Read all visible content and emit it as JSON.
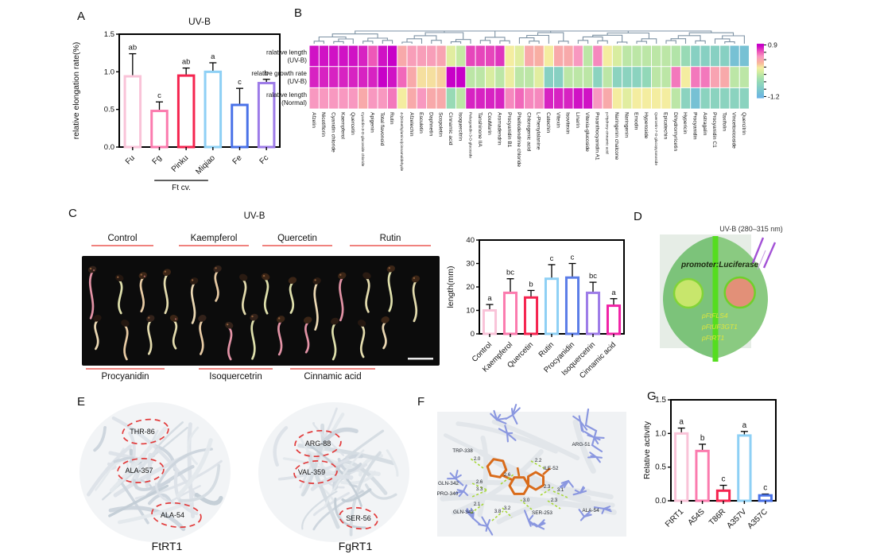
{
  "panels": {
    "a": "A",
    "b": "B",
    "c": "C",
    "d": "D",
    "e": "E",
    "f": "F",
    "g": "G"
  },
  "chart_data": [
    {
      "id": "panel_a",
      "type": "bar",
      "title": "UV-B",
      "ylabel": "relative elongation rate(%)",
      "ylim": [
        0,
        1.5
      ],
      "yticks": [
        "0.0",
        "0.5",
        "1.0",
        "1.5"
      ],
      "categories": [
        "Fu",
        "Fg",
        "Pinku",
        "Miqiao",
        "Fe",
        "Fc"
      ],
      "values": [
        0.94,
        0.48,
        0.95,
        1.0,
        0.56,
        0.85
      ],
      "errors": [
        0.3,
        0.12,
        0.1,
        0.12,
        0.22,
        0.05
      ],
      "letters": [
        "ab",
        "c",
        "ab",
        "a",
        "c",
        "b"
      ],
      "bar_colors": [
        "#f9c3d8",
        "#fb7bae",
        "#f5244f",
        "#8ed0f5",
        "#4a72e8",
        "#9d7be8"
      ],
      "group_label": "Ft cv.",
      "group_indices": [
        2,
        3
      ]
    },
    {
      "id": "panel_b",
      "type": "heatmap",
      "row_labels": [
        [
          "ralative length",
          "(UV-B)"
        ],
        [
          "relative growth rate",
          "(UV-B)"
        ],
        [
          "ralative length",
          "(Normal)"
        ]
      ],
      "columns": [
        "Afzelin",
        "Nicotiflorin",
        "Cyanidin chloride",
        "Kaempferol",
        "Quercetin",
        "Cyanidin-3-O-glucoside chloride",
        "Apigenin",
        "Total flavonoid",
        "Rutin",
        "4-(Dimethylamino)cinnamaldehyde",
        "Afzelechin",
        "Esculetin",
        "Daphnetin",
        "Scopoletin",
        "Cinnamic acid",
        "Isoquercitrin",
        "Pelargonidin 3-O-glucoside",
        "Tanshinone IIA",
        "CouMarin",
        "Aromadendrin",
        "Procyanidin B1",
        "Phellodendrine chloride",
        "Chlorogenic acid",
        "L-Phenylalanine",
        "Catechin",
        "Vitexin",
        "Isovitexin",
        "Linarin",
        "Vitexia-glucoside",
        "Proanthocyanidin A1",
        "p-Hydroxy-cinnamic acid",
        "Naringenin chalcone",
        "Naringenin",
        "Emodin",
        "Hyperoside",
        "Quercetin-7-O-glucopyranoside",
        "Epicatechin",
        "Dihydromyricetin",
        "Hypericin",
        "Procyanidin",
        "Astragalin",
        "Procyanidin C1",
        "Taxifolin",
        "Vincetoxicoside",
        "Quercitrin"
      ],
      "small_label_indices": [
        5,
        9,
        16,
        30,
        35
      ],
      "values": [
        [
          0.85,
          0.85,
          0.85,
          0.85,
          0.85,
          0.8,
          0.65,
          0.85,
          0.9,
          0.3,
          0.4,
          0.4,
          0.4,
          0.35,
          -0.1,
          -0.25,
          0.7,
          0.7,
          0.7,
          0.75,
          0.0,
          -0.1,
          0.3,
          0.25,
          0.0,
          0.3,
          0.3,
          0.45,
          -0.3,
          0.5,
          0.0,
          -0.15,
          -0.3,
          -0.3,
          -0.3,
          -0.3,
          -0.3,
          -0.35,
          -0.55,
          -0.75,
          -0.75,
          -0.75,
          -0.75,
          -1.0,
          -1.0
        ],
        [
          0.8,
          0.8,
          0.8,
          0.8,
          0.8,
          0.8,
          0.8,
          0.9,
          0.85,
          0.6,
          0.3,
          0.05,
          0.05,
          0.1,
          0.9,
          0.9,
          -0.3,
          -0.3,
          -0.15,
          -0.3,
          -0.05,
          -0.3,
          -0.3,
          -0.1,
          -0.75,
          -0.75,
          -0.3,
          -0.3,
          -0.3,
          -0.7,
          -0.3,
          -0.7,
          -0.7,
          -0.7,
          -0.6,
          -0.3,
          -0.3,
          0.55,
          0.0,
          0.55,
          0.55,
          0.35,
          0.3,
          -0.3,
          -0.3
        ],
        [
          0.45,
          0.45,
          0.45,
          0.45,
          0.45,
          0.3,
          0.45,
          0.45,
          0.55,
          0.0,
          0.3,
          0.45,
          0.3,
          0.3,
          -0.55,
          -0.3,
          0.8,
          0.8,
          0.8,
          0.8,
          0.5,
          0.6,
          0.5,
          0.5,
          0.8,
          0.8,
          0.8,
          0.85,
          0.85,
          0.45,
          0.3,
          0.0,
          -0.1,
          0.0,
          0.0,
          0.0,
          0.0,
          -0.3,
          -0.7,
          -1.0,
          -0.7,
          -0.7,
          -0.7,
          -0.7,
          -0.7
        ]
      ],
      "colorbar": {
        "max_label": "0.9",
        "min_label": "-1.2",
        "max": 0.9,
        "min": -1.2
      }
    },
    {
      "id": "panel_c",
      "type": "bar",
      "ylabel": "length(mm)",
      "ylim": [
        0,
        40
      ],
      "yticks": [
        "0",
        "10",
        "20",
        "30",
        "40"
      ],
      "categories": [
        "Control",
        "Kaempferol",
        "Quercetin",
        "Rutin",
        "Procyanidin",
        "Isoquercetrin",
        "Cinnamic acid"
      ],
      "values": [
        10,
        17.5,
        15.5,
        23.5,
        24,
        17.5,
        12
      ],
      "errors": [
        2.5,
        6,
        3,
        6,
        6,
        4.5,
        3
      ],
      "letters": [
        "a",
        "bc",
        "b",
        "c",
        "c",
        "bc",
        "a"
      ],
      "bar_colors": [
        "#f9c3d8",
        "#fb7bae",
        "#f5244f",
        "#8ed0f5",
        "#5b7de8",
        "#9d7be8",
        "#f122a6"
      ]
    },
    {
      "id": "panel_g",
      "type": "bar",
      "ylabel": "Relative activity",
      "ylim": [
        0,
        1.5
      ],
      "yticks": [
        "0.0",
        "0.5",
        "1.0",
        "1.5"
      ],
      "categories": [
        "FtRT1",
        "A54S",
        "T86R",
        "A357V",
        "A357C"
      ],
      "values": [
        1.0,
        0.74,
        0.15,
        0.97,
        0.08
      ],
      "errors": [
        0.08,
        0.1,
        0.08,
        0.06,
        0.02
      ],
      "letters": [
        "a",
        "b",
        "c",
        "a",
        "c"
      ],
      "bar_colors": [
        "#f9c3d8",
        "#fb7bae",
        "#f5244f",
        "#8ed0f5",
        "#4a72e8"
      ]
    }
  ],
  "panel_c": {
    "title": "UV-B",
    "top_groups": [
      "Control",
      "Kaempferol",
      "Quercetin",
      "Rutin"
    ],
    "bottom_groups": [
      "Procyanidin",
      "Isoquercetrin",
      "Cinnamic acid"
    ],
    "underline_color": "#f0827e"
  },
  "panel_d": {
    "uvb_label": "UV-B (280–315 nm)",
    "promoter_label": "promoter:Luciferase",
    "genes": [
      "pFtFLS4",
      "pFtUF3GT1",
      "pFtRT1"
    ],
    "colors": {
      "plate": "#e6ede6",
      "leaf_left": "#7cc37a",
      "leaf_right": "#8aca81",
      "midrib": "#55dd1f",
      "control_spot_fill": "#c8e66c",
      "control_spot_stroke": "#82d437",
      "uvb_spot_fill": "#e29078",
      "uvb_spot_stroke": "#70d02a",
      "ray": "#a352d6",
      "gene_text": "#dde63c",
      "promoter_text": "#1c2a10"
    }
  },
  "panel_e": {
    "proteins": [
      {
        "name": "FtRT1",
        "residues": [
          "THR-86",
          "ALA-357",
          "ALA-54"
        ]
      },
      {
        "name": "FgRT1",
        "residues": [
          "ARG-88",
          "VAL-359",
          "SER-56"
        ]
      }
    ],
    "highlight_color": "#e23b3b"
  },
  "panel_f": {
    "residues": [
      "TRP-338",
      "ARG-51",
      "ILE-52",
      "GLN-342",
      "PRO-340",
      "GLN-342",
      "SER-253",
      "ALA-54"
    ],
    "distances": [
      "2.0",
      "2.2",
      "2.6",
      "2.6",
      "3.3",
      "2.3",
      "3.1",
      "2.1",
      "3.8",
      "3.2",
      "3.0",
      "2.3"
    ],
    "colors": {
      "ligand": "#d96b1a",
      "residue_sticks": "#8a97e0",
      "hbond": "#a8d838"
    }
  }
}
